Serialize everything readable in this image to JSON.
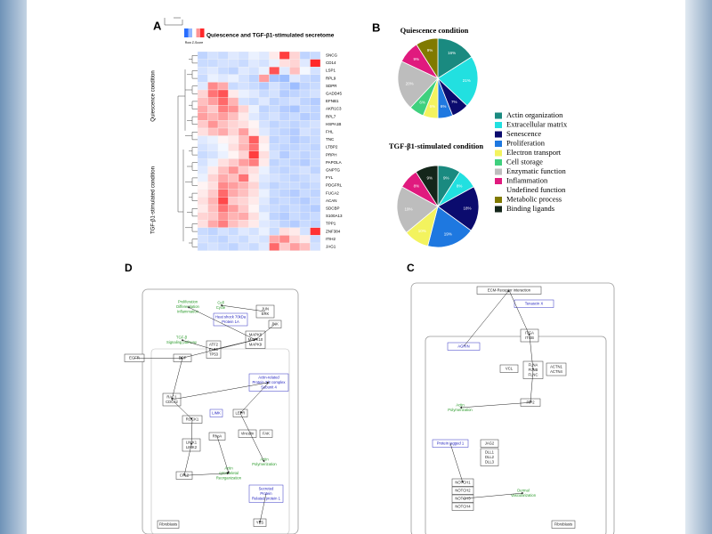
{
  "panel_a": {
    "label": "A",
    "title": "Quiescence and TGF-β1-stimulated secretome",
    "key_label": "Row Z-Score",
    "row_groups": [
      "Quiescence condition",
      "TGF-β1-stimulated condition"
    ],
    "genes": [
      "SNCG",
      "CD14",
      "LSP1",
      "RPL9",
      "SDPR",
      "GADD45",
      "EFNB1",
      "AKR1C3",
      "RPL7",
      "HSPA1B",
      "FHL",
      "TNC",
      "LTBP2",
      "PRPH",
      "PAPOLA",
      "GNPTG",
      "FYL",
      "PDGFRL",
      "FUCA2",
      "ACAN",
      "SDCBP",
      "S100A13",
      "TPP1",
      "ZNF384",
      "ITIH2",
      "JAG1"
    ],
    "values": [
      [
        -0.6,
        -0.4,
        -0.5,
        -0.3,
        -0.4,
        -0.2,
        -0.3,
        0.2,
        1.8,
        0.4,
        -0.6,
        -0.5
      ],
      [
        -0.5,
        -0.5,
        -0.4,
        -0.4,
        -0.5,
        -0.3,
        -0.4,
        -0.2,
        0.3,
        0.4,
        -0.3,
        2.0
      ],
      [
        -0.4,
        -0.3,
        -0.5,
        -0.6,
        -0.3,
        -0.4,
        -0.2,
        1.6,
        -0.3,
        0.6,
        -0.1,
        -0.4
      ],
      [
        -0.5,
        -0.2,
        -0.3,
        -0.2,
        -0.4,
        -0.6,
        0.9,
        -0.8,
        -0.9,
        -0.3,
        -0.5,
        -0.6
      ],
      [
        -0.3,
        1.1,
        0.8,
        -0.5,
        -0.4,
        -0.5,
        -0.7,
        -0.4,
        -0.6,
        -0.9,
        -0.6,
        -0.5
      ],
      [
        0.4,
        1.3,
        1.6,
        0.2,
        -0.2,
        -0.3,
        -0.5,
        -0.4,
        -0.7,
        -0.6,
        -0.5,
        -0.4
      ],
      [
        0.6,
        0.9,
        1.4,
        0.7,
        -0.4,
        -0.5,
        -0.3,
        -0.6,
        -0.5,
        -0.4,
        -0.6,
        -0.7
      ],
      [
        0.8,
        0.5,
        1.2,
        1.0,
        0.4,
        -0.2,
        -0.6,
        -0.5,
        -0.7,
        -0.8,
        -0.5,
        -0.6
      ],
      [
        0.9,
        0.7,
        0.9,
        0.6,
        0.2,
        -0.3,
        -0.5,
        -0.4,
        -0.6,
        -0.5,
        -0.7,
        -0.6
      ],
      [
        0.5,
        1.0,
        0.6,
        0.4,
        0.3,
        0.1,
        -0.4,
        -0.6,
        -0.5,
        -0.6,
        -0.5,
        -0.4
      ],
      [
        0.3,
        0.6,
        0.8,
        0.4,
        0.9,
        0.2,
        -0.3,
        -0.5,
        -0.6,
        -0.7,
        -0.4,
        -0.5
      ],
      [
        -0.3,
        -0.2,
        0.1,
        0.2,
        0.6,
        1.5,
        0.2,
        -0.6,
        -0.5,
        -0.7,
        -0.6,
        -0.5
      ],
      [
        -0.4,
        -0.3,
        -0.1,
        0.3,
        0.7,
        1.3,
        0.1,
        -0.5,
        -0.6,
        -0.6,
        -0.5,
        -0.6
      ],
      [
        -0.5,
        -0.4,
        -0.2,
        0.1,
        0.4,
        1.8,
        0.3,
        -0.4,
        -0.7,
        -0.5,
        -0.6,
        -0.5
      ],
      [
        -0.4,
        -0.2,
        0.3,
        0.5,
        0.9,
        1.2,
        0.2,
        -0.6,
        -0.5,
        -0.6,
        -0.7,
        -0.5
      ],
      [
        -0.3,
        0.2,
        0.6,
        1.0,
        0.5,
        0.3,
        -0.2,
        -0.5,
        -0.6,
        -0.5,
        -0.4,
        -0.6
      ],
      [
        -0.2,
        0.4,
        0.8,
        0.6,
        1.3,
        0.2,
        -0.3,
        -0.4,
        -0.5,
        -0.6,
        -0.5,
        -0.4
      ],
      [
        0.1,
        0.3,
        1.1,
        0.9,
        0.7,
        0.4,
        -0.4,
        -0.6,
        -0.5,
        -0.5,
        -0.6,
        -0.5
      ],
      [
        0.2,
        0.5,
        1.4,
        0.8,
        0.6,
        0.3,
        -0.2,
        -0.5,
        -0.6,
        -0.7,
        -0.5,
        -0.6
      ],
      [
        0.3,
        0.7,
        1.7,
        0.5,
        0.4,
        0.2,
        -0.3,
        -0.6,
        -0.5,
        -0.6,
        -0.7,
        -0.5
      ],
      [
        0.2,
        0.6,
        1.3,
        0.9,
        0.5,
        0.1,
        -0.4,
        -0.5,
        -0.6,
        -0.5,
        -0.6,
        -0.7
      ],
      [
        0.4,
        0.5,
        1.0,
        0.7,
        0.8,
        0.3,
        -0.2,
        -0.6,
        -0.7,
        -0.5,
        -0.6,
        -0.5
      ],
      [
        0.3,
        0.8,
        1.2,
        0.6,
        0.4,
        0.2,
        -0.3,
        -0.4,
        -0.6,
        -0.7,
        -0.5,
        -0.6
      ],
      [
        -0.5,
        -0.6,
        -0.4,
        -0.5,
        -0.3,
        -0.4,
        -0.2,
        -0.5,
        0.3,
        0.2,
        -0.4,
        1.9
      ],
      [
        -0.4,
        -0.5,
        -0.6,
        -0.4,
        -0.5,
        -0.3,
        -0.4,
        0.8,
        1.1,
        0.4,
        0.2,
        -0.5
      ],
      [
        -0.5,
        -0.4,
        -0.5,
        -0.6,
        -0.4,
        -0.5,
        -0.3,
        1.4,
        0.5,
        0.9,
        0.6,
        -0.4
      ]
    ]
  },
  "panel_b": {
    "label": "B",
    "legend": [
      {
        "name": "Actin organization",
        "color": "#1a8a80"
      },
      {
        "name": "Extracellular matrix",
        "color": "#22e0e0"
      },
      {
        "name": "Senescence",
        "color": "#0b0b6e"
      },
      {
        "name": "Proliferation",
        "color": "#1e78e0"
      },
      {
        "name": "Electron transport",
        "color": "#f3f35e"
      },
      {
        "name": "Cell storage",
        "color": "#3fd07e"
      },
      {
        "name": "Enzymatic function",
        "color": "#bdbdbd"
      },
      {
        "name": "Inflammation",
        "color": "#e01a7e"
      },
      {
        "name": "Undefined function",
        "color": "#ffffff"
      },
      {
        "name": "Metabolic process",
        "color": "#807a00"
      },
      {
        "name": "Binding ligands",
        "color": "#14261a"
      }
    ],
    "pies": [
      {
        "title": "Quiescence condition",
        "values": [
          16,
          21,
          7,
          6,
          6,
          6,
          20,
          9,
          null,
          9,
          null
        ],
        "value_labels": [
          "16%",
          "21%",
          "7%",
          "6%",
          "6%",
          "6%",
          "20%",
          "9%",
          null,
          "9%",
          null
        ]
      },
      {
        "title": "TGF-β1-stimulated condition",
        "values": [
          9,
          8,
          18,
          19,
          10,
          null,
          19,
          8,
          null,
          null,
          9
        ],
        "value_labels": [
          "9%",
          "8%",
          "18%",
          "19%",
          "10%",
          null,
          "19%",
          "8%",
          null,
          null,
          "9%"
        ]
      }
    ]
  },
  "panel_d": {
    "label": "D",
    "nodes": [
      {
        "lines": [
          "Proliferation",
          "Differentiation",
          "Inflammation"
        ]
      },
      {
        "lines": [
          "Cell",
          "Cycle"
        ]
      },
      {
        "lines": [
          "JUN",
          "ERK"
        ]
      },
      {
        "lines": [
          "Heat shock 70kDa",
          "Protein 1A"
        ]
      },
      {
        "lines": [
          "JNK"
        ]
      },
      {
        "lines": [
          "MAPK8",
          "MAPK10",
          "MAPK9"
        ]
      },
      {
        "lines": [
          "TGF-β",
          "Signaling pathway"
        ]
      },
      {
        "lines": [
          "ATF2",
          "ELK1",
          "TP53"
        ]
      },
      {
        "lines": [
          "EGFR"
        ]
      },
      {
        "lines": [
          "EGF"
        ]
      },
      {
        "lines": [
          "Actin-related",
          "Protein 2/3 complex",
          "Subunit 4"
        ]
      },
      {
        "lines": [
          "RAC1",
          "CDC42"
        ]
      },
      {
        "lines": [
          "ROCK1"
        ]
      },
      {
        "lines": [
          "LIMK"
        ]
      },
      {
        "lines": [
          "LEPR"
        ]
      },
      {
        "lines": [
          "RhoA"
        ]
      },
      {
        "lines": [
          "Vinculin"
        ]
      },
      {
        "lines": [
          "FAK"
        ]
      },
      {
        "lines": [
          "LIMK1",
          "LIMK2"
        ]
      },
      {
        "lines": [
          "Actin",
          "Polymerization"
        ]
      },
      {
        "lines": [
          "CFL2"
        ]
      },
      {
        "lines": [
          "Actin",
          "cytoskeletal",
          "Reorganization"
        ]
      },
      {
        "lines": [
          "Secreted",
          "Protein",
          "Related protein 1"
        ]
      },
      {
        "lines": [
          "YES"
        ]
      },
      {
        "lines": [
          "Fibroblasts"
        ]
      }
    ]
  },
  "panel_c": {
    "label": "C",
    "nodes": [
      {
        "lines": [
          "ECM-Receptor interaction"
        ]
      },
      {
        "lines": [
          "Tenascin X"
        ]
      },
      {
        "lines": [
          "AGRIN"
        ]
      },
      {
        "lines": [
          "ITGA",
          "ITGB"
        ]
      },
      {
        "lines": [
          "VCL"
        ]
      },
      {
        "lines": [
          "FLNA",
          "FLNB",
          "FLNC"
        ]
      },
      {
        "lines": [
          "ACTN1",
          "ACTN4"
        ]
      },
      {
        "lines": [
          "Actin",
          "Polymerization"
        ]
      },
      {
        "lines": [
          "PIP2"
        ]
      },
      {
        "lines": [
          "Protein jagged 1"
        ]
      },
      {
        "lines": [
          "JAG2"
        ]
      },
      {
        "lines": [
          "DLL1",
          "DLL2",
          "DLL3"
        ]
      },
      {
        "lines": [
          "NOTCH1"
        ]
      },
      {
        "lines": [
          "NOTCH2"
        ]
      },
      {
        "lines": [
          "NOTCH3"
        ]
      },
      {
        "lines": [
          "NOTCH4"
        ]
      },
      {
        "lines": [
          "Dermal",
          "Vascularization"
        ]
      },
      {
        "lines": [
          "Fibroblasts"
        ]
      }
    ]
  }
}
